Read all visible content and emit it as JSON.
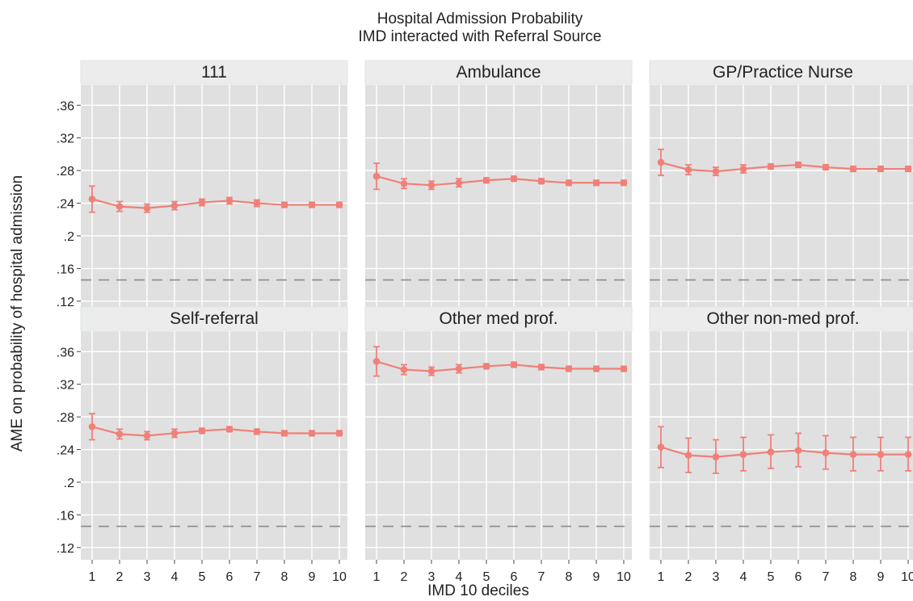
{
  "chart_data": {
    "type": "line",
    "title": "Hospital Admission Probability",
    "subtitle": "IMD interacted with Referral Source",
    "xlabel": "IMD 10 deciles",
    "ylabel": "AME on probability of hospital admission",
    "x": [
      1,
      2,
      3,
      4,
      5,
      6,
      7,
      8,
      9,
      10
    ],
    "x_tick_labels": [
      "1",
      "2",
      "3",
      "4",
      "5",
      "6",
      "7",
      "8",
      "9",
      "10"
    ],
    "y_ticks": [
      0.12,
      0.16,
      0.2,
      0.24,
      0.28,
      0.32,
      0.36
    ],
    "y_tick_labels": [
      ".12",
      ".16",
      ".2",
      ".24",
      ".28",
      ".32",
      ".36"
    ],
    "ylim": [
      0.105,
      0.385
    ],
    "reference_line": 0.146,
    "grid": true,
    "colors": {
      "series": "#f08078",
      "panel_bg": "#e0e0e0",
      "strip_bg": "#ececec",
      "grid": "#ffffff",
      "reference": "#8c8c8c"
    },
    "panels": [
      {
        "title": "111",
        "values": [
          0.245,
          0.236,
          0.234,
          0.237,
          0.241,
          0.243,
          0.24,
          0.238,
          0.238,
          0.238
        ],
        "lower": [
          0.229,
          0.23,
          0.229,
          0.232,
          0.237,
          0.239,
          0.236,
          0.235,
          0.235,
          0.235
        ],
        "upper": [
          0.261,
          0.242,
          0.239,
          0.242,
          0.245,
          0.247,
          0.244,
          0.241,
          0.241,
          0.241
        ]
      },
      {
        "title": "Ambulance",
        "values": [
          0.273,
          0.264,
          0.262,
          0.265,
          0.268,
          0.27,
          0.267,
          0.265,
          0.265,
          0.265
        ],
        "lower": [
          0.257,
          0.258,
          0.257,
          0.26,
          0.265,
          0.267,
          0.264,
          0.262,
          0.262,
          0.262
        ],
        "upper": [
          0.289,
          0.27,
          0.267,
          0.27,
          0.271,
          0.273,
          0.27,
          0.268,
          0.268,
          0.268
        ]
      },
      {
        "title": "GP/Practice Nurse",
        "values": [
          0.29,
          0.281,
          0.279,
          0.282,
          0.285,
          0.287,
          0.284,
          0.282,
          0.282,
          0.282
        ],
        "lower": [
          0.274,
          0.275,
          0.274,
          0.277,
          0.282,
          0.284,
          0.281,
          0.279,
          0.279,
          0.279
        ],
        "upper": [
          0.306,
          0.287,
          0.284,
          0.287,
          0.288,
          0.29,
          0.287,
          0.285,
          0.285,
          0.285
        ]
      },
      {
        "title": "Self-referral",
        "values": [
          0.268,
          0.259,
          0.257,
          0.26,
          0.263,
          0.265,
          0.262,
          0.26,
          0.26,
          0.26
        ],
        "lower": [
          0.252,
          0.253,
          0.252,
          0.255,
          0.26,
          0.262,
          0.259,
          0.257,
          0.257,
          0.257
        ],
        "upper": [
          0.284,
          0.265,
          0.262,
          0.265,
          0.266,
          0.268,
          0.265,
          0.263,
          0.263,
          0.263
        ]
      },
      {
        "title": "Other med prof.",
        "values": [
          0.348,
          0.338,
          0.336,
          0.339,
          0.342,
          0.344,
          0.341,
          0.339,
          0.339,
          0.339
        ],
        "lower": [
          0.33,
          0.332,
          0.331,
          0.334,
          0.339,
          0.341,
          0.338,
          0.336,
          0.336,
          0.336
        ],
        "upper": [
          0.366,
          0.344,
          0.341,
          0.344,
          0.345,
          0.347,
          0.344,
          0.342,
          0.342,
          0.342
        ]
      },
      {
        "title": "Other non-med prof.",
        "values": [
          0.243,
          0.233,
          0.231,
          0.234,
          0.237,
          0.239,
          0.236,
          0.234,
          0.234,
          0.234
        ],
        "lower": [
          0.218,
          0.212,
          0.211,
          0.214,
          0.217,
          0.219,
          0.216,
          0.214,
          0.214,
          0.214
        ],
        "upper": [
          0.268,
          0.254,
          0.252,
          0.255,
          0.258,
          0.26,
          0.257,
          0.255,
          0.255,
          0.255
        ]
      }
    ]
  }
}
